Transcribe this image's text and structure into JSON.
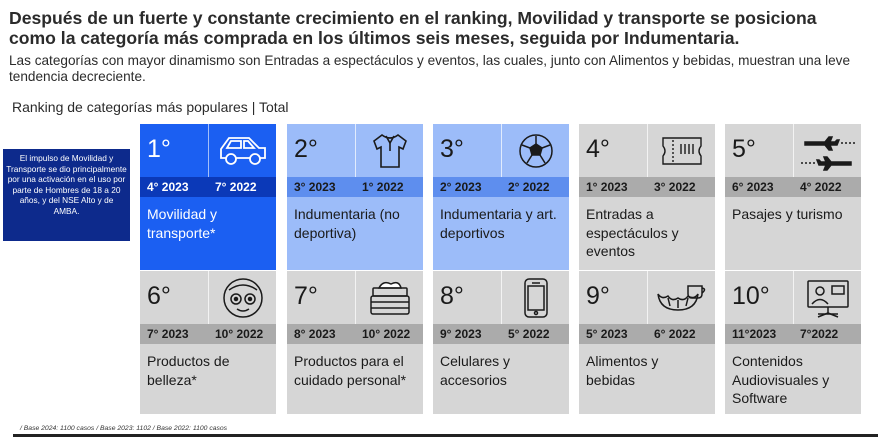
{
  "header": {
    "title_line1": "Después de un fuerte y constante crecimiento en el ranking, Movilidad y transporte se posiciona",
    "title_line2": "como la categoría más comprada en los últimos seis meses, seguida por Indumentaria.",
    "subtitle": "Las categorías con mayor dinamismo son Entradas a espectáculos y eventos, las cuales, junto con Alimentos y bebidas, muestran una leve tendencia decreciente.",
    "section_label": "Ranking de categorías más populares | Total"
  },
  "note": "El impulso de Movilidad y Transporte se dio principalmente por una activación en el uso por parte de Hombres de 18 a 20 años, y del NSE Alto y de AMBA.",
  "cards": [
    {
      "rank": "1°",
      "y2023": "4° 2023",
      "y2022": "7° 2022",
      "label": "Movilidad y transporte*",
      "icon": "car-icon"
    },
    {
      "rank": "2°",
      "y2023": "3° 2023",
      "y2022": "1° 2022",
      "label": "Indumentaria (no deportiva)",
      "icon": "shirt-icon"
    },
    {
      "rank": "3°",
      "y2023": "2° 2023",
      "y2022": "2° 2022",
      "label": "Indumentaria y art. deportivos",
      "icon": "soccer-ball-icon"
    },
    {
      "rank": "4°",
      "y2023": "1° 2023",
      "y2022": "3° 2022",
      "label": "Entradas a espectáculos y eventos",
      "icon": "ticket-icon"
    },
    {
      "rank": "5°",
      "y2023": "6° 2023",
      "y2022": "4° 2022",
      "label": "Pasajes y turismo",
      "icon": "airplanes-icon"
    },
    {
      "rank": "6°",
      "y2023": "7° 2023",
      "y2022": "10° 2022",
      "label": "Productos de belleza*",
      "icon": "face-mask-icon"
    },
    {
      "rank": "7°",
      "y2023": "8° 2023",
      "y2022": "10° 2022",
      "label": "Productos para el cuidado personal*",
      "icon": "cream-jar-icon"
    },
    {
      "rank": "8°",
      "y2023": "9° 2023",
      "y2022": "5° 2022",
      "label": "Celulares y accesorios",
      "icon": "phone-icon"
    },
    {
      "rank": "9°",
      "y2023": "5° 2023",
      "y2022": "6° 2022",
      "label": "Alimentos y bebidas",
      "icon": "croissant-coffee-icon"
    },
    {
      "rank": "10°",
      "y2023": "11°2023",
      "y2022": "7°2022",
      "label": "Contenidos Audiovisuales y Software",
      "icon": "video-call-icon"
    }
  ],
  "base_note": "/ Base 2024: 1100 casos / Base 2023: 1102 / Base 2022: 1100 casos",
  "colors": {
    "blue": "#1b5ff2",
    "dark_blue": "#0b39b8",
    "light_blue": "#9cbcf9",
    "gray": "#d6d6d6"
  }
}
